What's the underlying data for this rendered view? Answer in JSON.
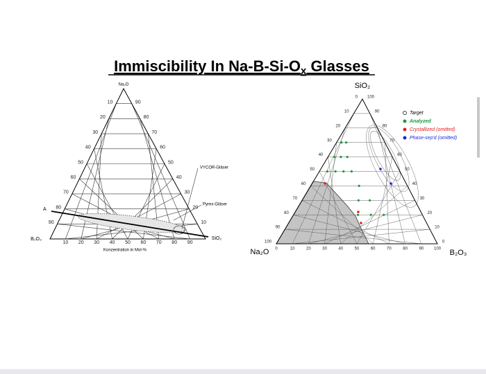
{
  "header": {
    "title": "Immiscibility In Na-B-Si-O",
    "title_subscript": "x",
    "title_end": " Glasses"
  },
  "left_diagram": {
    "vertices": {
      "top": "Na₂O",
      "left": "B₂O₃",
      "right": "SiO₂"
    },
    "left_ticks": [
      10,
      20,
      30,
      40,
      50,
      60,
      70,
      80,
      90
    ],
    "right_ticks": [
      90,
      80,
      70,
      60,
      50,
      40,
      30,
      20,
      10
    ],
    "bottom_ticks": [
      10,
      20,
      30,
      40,
      50,
      60,
      70,
      80,
      90
    ],
    "axis_caption": "Konzentration in Mol-%",
    "annotations": {
      "vycor": "VYCOR-Gläser",
      "pyrex": "Pyrex-Gläser",
      "line": "A"
    }
  },
  "right_diagram": {
    "vertices": {
      "top": "SiO₂",
      "left": "Na₂O",
      "right": "B₂O₃"
    },
    "left_ticks": [
      0,
      10,
      20,
      30,
      40,
      50,
      60,
      70,
      80,
      90,
      100
    ],
    "right_ticks": [
      100,
      90,
      80,
      70,
      60,
      50,
      40,
      30,
      20,
      10,
      0
    ],
    "bottom_ticks": [
      0,
      10,
      20,
      30,
      40,
      50,
      60,
      70,
      80,
      90,
      100
    ],
    "legend": [
      "Target",
      "Analyzed",
      "Crystallized (omitted)",
      "Phase-sep'd (omitted)"
    ]
  }
}
